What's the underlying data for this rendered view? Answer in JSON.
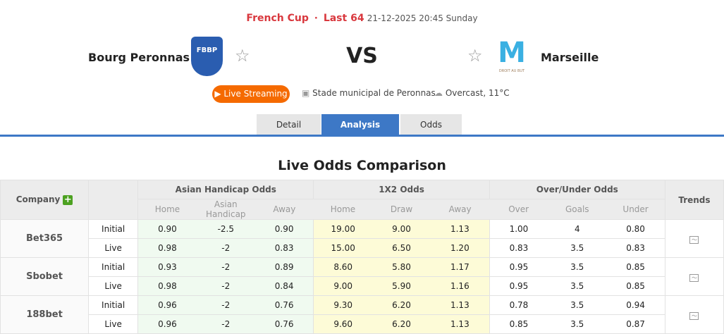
{
  "match": {
    "league": "French Cup",
    "round": "Last 64",
    "datetime": "21-12-2025 20:45 Sunday",
    "home": "Bourg Peronnas",
    "away": "Marseille",
    "vs": "VS",
    "home_logo_text": "FBBP",
    "away_logo_text": "DROIT AU BUT"
  },
  "info": {
    "live": "Live Streaming",
    "venue": "Stade municipal de Peronnas",
    "weather": "Overcast, 11°C"
  },
  "tabs": [
    {
      "label": "Detail"
    },
    {
      "label": "Analysis",
      "active": true
    },
    {
      "label": "Odds"
    }
  ],
  "section_title": "Live Odds Comparison",
  "table": {
    "company": "Company",
    "groups": [
      "Asian Handicap Odds",
      "1X2 Odds",
      "Over/Under Odds"
    ],
    "trends": "Trends",
    "sub": [
      "Home",
      "Asian Handicap",
      "Away",
      "Home",
      "Draw",
      "Away",
      "Over",
      "Goals",
      "Under"
    ],
    "rows": [
      {
        "company": "Bet365",
        "initial": [
          "0.90",
          "-2.5",
          "0.90",
          "19.00",
          "9.00",
          "1.13",
          "1.00",
          "4",
          "0.80"
        ],
        "live": [
          "0.98",
          "-2",
          "0.83",
          "15.00",
          "6.50",
          "1.20",
          "0.83",
          "3.5",
          "0.83"
        ]
      },
      {
        "company": "Sbobet",
        "initial": [
          "0.93",
          "-2",
          "0.89",
          "8.60",
          "5.80",
          "1.17",
          "0.95",
          "3.5",
          "0.85"
        ],
        "live": [
          "0.98",
          "-2",
          "0.84",
          "9.00",
          "5.90",
          "1.16",
          "0.95",
          "3.5",
          "0.85"
        ]
      },
      {
        "company": "188bet",
        "initial": [
          "0.96",
          "-2",
          "0.76",
          "9.30",
          "6.20",
          "1.13",
          "0.78",
          "3.5",
          "0.94"
        ],
        "live": [
          "0.96",
          "-2",
          "0.76",
          "9.60",
          "6.20",
          "1.13",
          "0.85",
          "3.5",
          "0.87"
        ]
      }
    ],
    "labels": {
      "initial": "Initial",
      "live": "Live"
    }
  }
}
